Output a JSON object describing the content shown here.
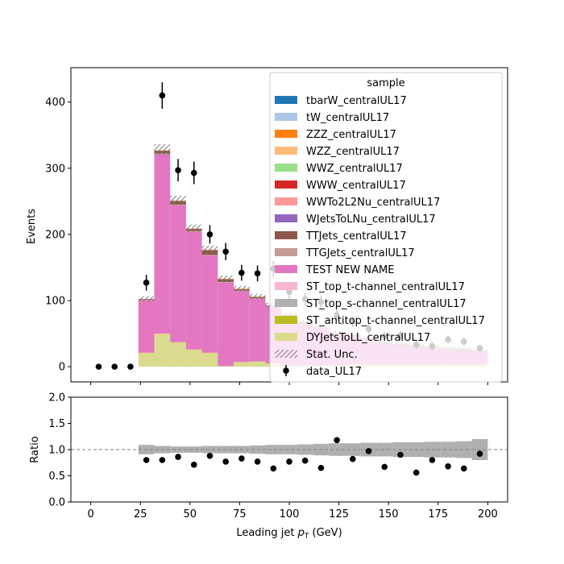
{
  "chart_data": [
    {
      "type": "bar",
      "xlabel": "Leading jet  $p_T$ (GeV)",
      "ylabel": "Events",
      "xlim": [
        -10,
        210
      ],
      "ylim": [
        -23,
        452
      ],
      "xticks": [
        0,
        25,
        50,
        75,
        100,
        125,
        150,
        175,
        200
      ],
      "yticks": [
        0,
        100,
        200,
        300,
        400
      ],
      "bin_edges": [
        24,
        32,
        40,
        48,
        56,
        64,
        72,
        80,
        88,
        96,
        104,
        112,
        120,
        128,
        136,
        144,
        152,
        160,
        168,
        176,
        184,
        192,
        200
      ],
      "stack": [
        {
          "name": "DYJetsToLL_centralUL17",
          "color": "#dbdb8d",
          "values": [
            21,
            50,
            37,
            26,
            21,
            1,
            7,
            8,
            5,
            2,
            2,
            2,
            2,
            3,
            3,
            3,
            3,
            3,
            3,
            3,
            3,
            3
          ]
        },
        {
          "name": "TEST NEW NAME",
          "color": "#e377c2",
          "values": [
            80,
            271,
            207,
            178,
            147,
            126,
            107,
            95,
            86,
            75,
            64,
            56,
            48,
            43,
            38,
            33,
            30,
            28,
            25,
            23,
            22,
            20
          ]
        },
        {
          "name": "TTGJets_centralUL17",
          "color": "#c49c94",
          "values": [
            0.5,
            1,
            1,
            1,
            1,
            1,
            1,
            0.5,
            0.5,
            0.5,
            0.5,
            0.5,
            0.5,
            0.5,
            0.5,
            0.5,
            0.5,
            0.5,
            0.5,
            0.5,
            0.5,
            0.5
          ]
        },
        {
          "name": "TTJets_centralUL17",
          "color": "#8c564b",
          "values": [
            1,
            4,
            5,
            3,
            7,
            4,
            2,
            2,
            1,
            1,
            1,
            1,
            1,
            1,
            1,
            1,
            1,
            1,
            1,
            1,
            1,
            1
          ]
        },
        {
          "name": "WWW_centralUL17",
          "color": "#d62728",
          "values": [
            0,
            0.5,
            0.5,
            0.5,
            0.5,
            0.5,
            0.5,
            0,
            0,
            0,
            0,
            0,
            0,
            0,
            0,
            0,
            0,
            0,
            0,
            0,
            0,
            0
          ]
        },
        {
          "name": "WWZ_centralUL17",
          "color": "#98df8a",
          "values": [
            0,
            0.5,
            0.5,
            0,
            0,
            0,
            0,
            0,
            0,
            0,
            0,
            0,
            0,
            0,
            0,
            0,
            0,
            0,
            0,
            0,
            0,
            0
          ]
        },
        {
          "name": "WZZ_centralUL17",
          "color": "#ffbb78",
          "values": [
            0,
            0.5,
            0.5,
            0.5,
            0.5,
            0.5,
            0.5,
            0.5,
            0,
            0,
            0,
            0,
            0,
            0,
            0,
            0,
            0,
            0,
            0,
            0,
            0,
            0
          ]
        }
      ],
      "stat_unc": [
        4,
        9,
        7,
        6,
        6,
        5,
        4,
        4,
        4,
        3,
        3,
        3,
        3,
        3,
        3,
        3,
        3,
        3,
        3,
        3,
        3,
        3
      ],
      "data": {
        "name": "data_UL17",
        "x": [
          4,
          12,
          20,
          28,
          36,
          44,
          52,
          60,
          68,
          76,
          84,
          92,
          100,
          108,
          116,
          124,
          132,
          140,
          148,
          156,
          164,
          172,
          180,
          188,
          196
        ],
        "y": [
          0,
          0,
          0,
          127,
          410,
          297,
          293,
          200,
          174,
          142,
          141,
          148,
          113,
          102,
          98,
          78,
          68,
          57,
          46,
          47,
          33,
          31,
          41,
          38,
          28
        ],
        "err": [
          0,
          0,
          0,
          12,
          20,
          17,
          17,
          14,
          13,
          12,
          12,
          12,
          11,
          10,
          10,
          9,
          8,
          8,
          7,
          7,
          6,
          6,
          6,
          6,
          5
        ]
      },
      "legend": {
        "title": "sample",
        "placement": "top-right",
        "entries": [
          {
            "label": "tbarW_centralUL17",
            "color": "#1f77b4",
            "kind": "patch"
          },
          {
            "label": "tW_centralUL17",
            "color": "#aec7e8",
            "kind": "patch"
          },
          {
            "label": "ZZZ_centralUL17",
            "color": "#ff7f0e",
            "kind": "patch"
          },
          {
            "label": "WZZ_centralUL17",
            "color": "#ffbb78",
            "kind": "patch"
          },
          {
            "label": "WWZ_centralUL17",
            "color": "#98df8a",
            "kind": "patch"
          },
          {
            "label": "WWW_centralUL17",
            "color": "#d62728",
            "kind": "patch"
          },
          {
            "label": "WWTo2L2Nu_centralUL17",
            "color": "#ff9896",
            "kind": "patch"
          },
          {
            "label": "WJetsToLNu_centralUL17",
            "color": "#9467bd",
            "kind": "patch"
          },
          {
            "label": "TTJets_centralUL17",
            "color": "#8c564b",
            "kind": "patch"
          },
          {
            "label": "TTGJets_centralUL17",
            "color": "#c49c94",
            "kind": "patch"
          },
          {
            "label": "TEST NEW NAME",
            "color": "#e377c2",
            "kind": "patch"
          },
          {
            "label": "ST_top_t-channel_centralUL17",
            "color": "#f7b6d2",
            "kind": "patch"
          },
          {
            "label": "ST_top_s-channel_centralUL17",
            "color": "#b0b0b0",
            "kind": "patch"
          },
          {
            "label": "ST_antitop_t-channel_centralUL17",
            "color": "#bcbd22",
            "kind": "patch"
          },
          {
            "label": "DYJetsToLL_centralUL17",
            "color": "#dbdb8d",
            "kind": "patch"
          },
          {
            "label": "Stat. Unc.",
            "color": "#808080",
            "kind": "hatch"
          },
          {
            "label": "data_UL17",
            "color": "#000000",
            "kind": "errorbar"
          }
        ]
      }
    },
    {
      "type": "scatter",
      "xlabel": "Leading jet  $p_T$ (GeV)",
      "ylabel": "Ratio",
      "xlim": [
        -10,
        210
      ],
      "ylim": [
        0,
        2
      ],
      "xticks": [
        0,
        25,
        50,
        75,
        100,
        125,
        150,
        175,
        200
      ],
      "yticks": [
        0.0,
        0.5,
        1.0,
        1.5,
        2.0
      ],
      "reference_line": 1.0,
      "x": [
        28,
        36,
        44,
        52,
        60,
        68,
        76,
        84,
        92,
        100,
        108,
        116,
        124,
        132,
        140,
        148,
        156,
        164,
        172,
        180,
        188,
        196
      ],
      "y": [
        0.8,
        0.8,
        0.86,
        0.71,
        0.88,
        0.77,
        0.83,
        0.77,
        0.64,
        0.77,
        0.79,
        0.65,
        1.18,
        0.82,
        0.97,
        0.67,
        0.9,
        0.56,
        0.8,
        0.68,
        0.64,
        0.92
      ],
      "band_halfwidth": [
        0.09,
        0.07,
        0.06,
        0.06,
        0.07,
        0.07,
        0.07,
        0.08,
        0.09,
        0.09,
        0.1,
        0.11,
        0.12,
        0.12,
        0.13,
        0.13,
        0.14,
        0.14,
        0.15,
        0.15,
        0.16,
        0.2
      ]
    }
  ]
}
